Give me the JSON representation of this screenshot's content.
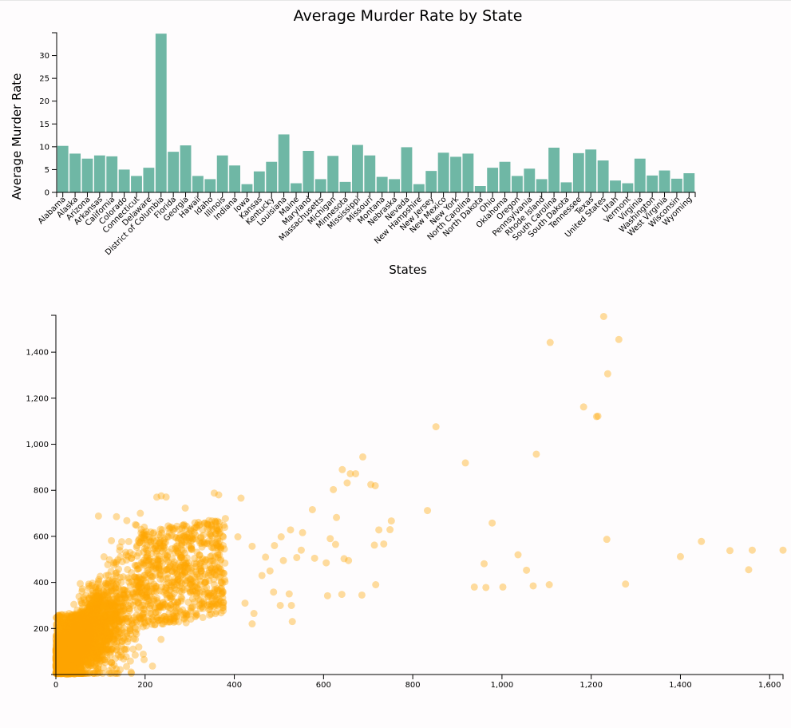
{
  "chart_data": [
    {
      "type": "bar",
      "title": "Average Murder Rate by State",
      "xlabel": "States",
      "ylabel": "Average Murder Rate",
      "ylim": [
        0,
        35
      ],
      "yticks": [
        0,
        5,
        10,
        15,
        20,
        25,
        30
      ],
      "bar_color": "#6fb7a5",
      "categories": [
        "Alabama",
        "Alaska",
        "Arizona",
        "Arkansas",
        "California",
        "Colorado",
        "Connecticut",
        "Delaware",
        "District of Columbia",
        "Florida",
        "Georgia",
        "Hawaii",
        "Idaho",
        "Illinois",
        "Indiana",
        "Iowa",
        "Kansas",
        "Kentucky",
        "Louisiana",
        "Maine",
        "Maryland",
        "Massachusetts",
        "Michigan",
        "Minnesota",
        "Mississippi",
        "Missouri",
        "Montana",
        "Nebraska",
        "Nevada",
        "New Hampshire",
        "New Jersey",
        "New Mexico",
        "New York",
        "North Carolina",
        "North Dakota",
        "Ohio",
        "Oklahoma",
        "Oregon",
        "Pennsylvania",
        "Rhode Island",
        "South Carolina",
        "South Dakota",
        "Tennessee",
        "Texas",
        "United States",
        "Utah",
        "Vermont",
        "Virginia",
        "Washington",
        "West Virginia",
        "Wisconsin",
        "Wyoming"
      ],
      "values": [
        10.2,
        8.5,
        7.4,
        8.1,
        7.9,
        5.0,
        3.6,
        5.4,
        34.8,
        8.9,
        10.3,
        3.6,
        2.9,
        8.1,
        5.9,
        1.8,
        4.6,
        6.7,
        12.7,
        2.0,
        9.1,
        2.9,
        8.0,
        2.3,
        10.4,
        8.1,
        3.4,
        2.9,
        9.9,
        1.8,
        4.7,
        8.7,
        7.8,
        8.5,
        1.4,
        5.4,
        6.7,
        3.6,
        5.2,
        2.9,
        9.8,
        2.2,
        8.6,
        9.4,
        7.0,
        2.6,
        2.0,
        7.4,
        3.7,
        4.8,
        3.0,
        4.2
      ]
    },
    {
      "type": "scatter",
      "point_color": "#ffa500",
      "xlim": [
        0,
        1630
      ],
      "ylim": [
        0,
        1560
      ],
      "xticks": [
        0,
        200,
        400,
        600,
        800,
        1000,
        1200,
        1400,
        1600
      ],
      "yticks": [
        200,
        400,
        600,
        800,
        1000,
        1200,
        1400
      ],
      "points": [
        [
          1228,
          1555
        ],
        [
          1108,
          1442
        ],
        [
          1262,
          1455
        ],
        [
          1237,
          1306
        ],
        [
          1183,
          1162
        ],
        [
          1212,
          1120
        ],
        [
          1215,
          1122
        ],
        [
          852,
          1076
        ],
        [
          1077,
          957
        ],
        [
          688,
          945
        ],
        [
          918,
          919
        ],
        [
          642,
          890
        ],
        [
          660,
          872
        ],
        [
          672,
          872
        ],
        [
          653,
          832
        ],
        [
          622,
          803
        ],
        [
          706,
          825
        ],
        [
          716,
          820
        ],
        [
          355,
          788
        ],
        [
          365,
          780
        ],
        [
          415,
          766
        ],
        [
          833,
          712
        ],
        [
          575,
          716
        ],
        [
          290,
          723
        ],
        [
          629,
          682
        ],
        [
          978,
          658
        ],
        [
          752,
          667
        ],
        [
          724,
          628
        ],
        [
          749,
          629
        ],
        [
          526,
          628
        ],
        [
          553,
          616
        ],
        [
          359,
          610
        ],
        [
          615,
          590
        ],
        [
          505,
          598
        ],
        [
          408,
          598
        ],
        [
          627,
          565
        ],
        [
          714,
          562
        ],
        [
          735,
          567
        ],
        [
          1235,
          587
        ],
        [
          1447,
          578
        ],
        [
          490,
          560
        ],
        [
          440,
          557
        ],
        [
          550,
          540
        ],
        [
          1511,
          538
        ],
        [
          1561,
          540
        ],
        [
          1630,
          540
        ],
        [
          540,
          508
        ],
        [
          580,
          505
        ],
        [
          646,
          503
        ],
        [
          1036,
          520
        ],
        [
          1400,
          512
        ],
        [
          470,
          510
        ],
        [
          510,
          495
        ],
        [
          606,
          485
        ],
        [
          656,
          495
        ],
        [
          960,
          481
        ],
        [
          1553,
          455
        ],
        [
          1055,
          453
        ],
        [
          326,
          450
        ],
        [
          342,
          430
        ],
        [
          480,
          450
        ],
        [
          462,
          430
        ],
        [
          717,
          390
        ],
        [
          1106,
          390
        ],
        [
          1277,
          393
        ],
        [
          1070,
          385
        ],
        [
          964,
          378
        ],
        [
          1002,
          380
        ],
        [
          938,
          380
        ],
        [
          609,
          342
        ],
        [
          641,
          348
        ],
        [
          686,
          345
        ],
        [
          523,
          350
        ],
        [
          488,
          358
        ],
        [
          528,
          300
        ],
        [
          503,
          300
        ],
        [
          424,
          310
        ],
        [
          444,
          265
        ],
        [
          440,
          220
        ],
        [
          530,
          230
        ]
      ],
      "cluster_note": ""
    }
  ]
}
